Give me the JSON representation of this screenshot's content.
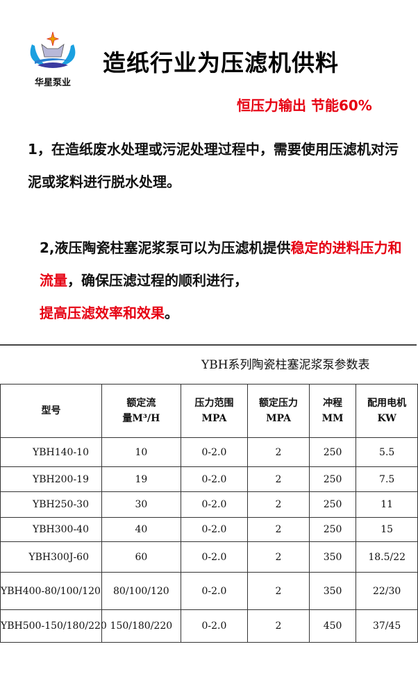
{
  "brand": {
    "name": "华星泵业"
  },
  "title": "造纸行业为压滤机供料",
  "slogan": "恒压力输出 节能60%",
  "para1": "1，在造纸废水处理或污泥处理过程中，需要使用压滤机对污泥或浆料进行脱水处理。",
  "para2": {
    "a": "2,液压陶瓷柱塞泥浆泵可以为压滤机提供",
    "b": "稳定的进料压力和流量",
    "c": "，确保压滤过程的顺利进行，",
    "d": "提高压滤效率和效果",
    "e": "。"
  },
  "colors": {
    "accent": "#e60012"
  },
  "table": {
    "title": "YBH系列陶瓷柱塞泥浆泵参数表",
    "headers": [
      [
        "型号",
        ""
      ],
      [
        "额定流",
        "量M³/H"
      ],
      [
        "压力范围",
        "MPA"
      ],
      [
        "额定压力",
        "MPA"
      ],
      [
        "冲程",
        "MM"
      ],
      [
        "配用电机",
        "KW"
      ]
    ],
    "rows": [
      [
        "YBH140-10",
        "10",
        "0-2.0",
        "2",
        "250",
        "5.5"
      ],
      [
        "YBH200-19",
        "19",
        "0-2.0",
        "2",
        "250",
        "7.5"
      ],
      [
        "YBH250-30",
        "30",
        "0-2.0",
        "2",
        "250",
        "11"
      ],
      [
        "YBH300-40",
        "40",
        "0-2.0",
        "2",
        "250",
        "15"
      ],
      [
        "YBH300J-60",
        "60",
        "0-2.0",
        "2",
        "350",
        "18.5/22"
      ],
      [
        "YBH400-80/100/120",
        "80/100/120",
        "0-2.0",
        "2",
        "350",
        "22/30"
      ],
      [
        "YBH500-150/180/220",
        "150/180/220",
        "0-2.0",
        "2",
        "450",
        "37/45"
      ]
    ]
  }
}
